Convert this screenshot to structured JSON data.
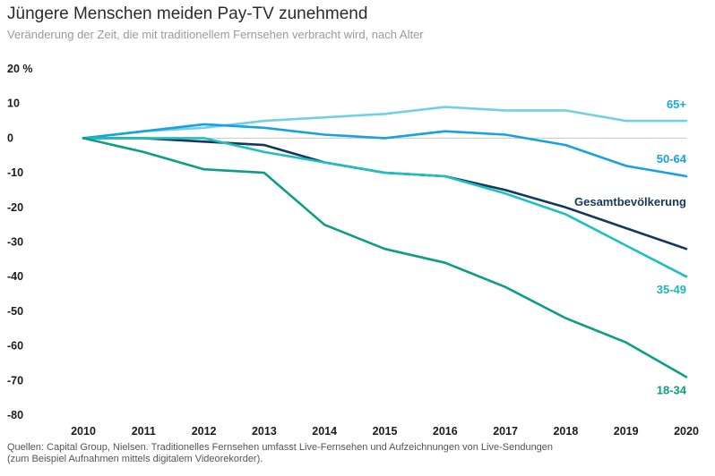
{
  "chart_data": {
    "type": "line",
    "title": "Jüngere Menschen meiden Pay-TV zunehmend",
    "subtitle": "Veränderung der Zeit, die mit traditionellem Fernsehen verbracht wird, nach Alter",
    "x": [
      2010,
      2011,
      2012,
      2013,
      2014,
      2015,
      2016,
      2017,
      2018,
      2019,
      2020
    ],
    "x_tick_labels": [
      "2010",
      "2011",
      "2012",
      "2013",
      "2014",
      "2015",
      "2016",
      "2017",
      "2018",
      "2019",
      "2020"
    ],
    "y_tick_labels": [
      "20 %",
      "10",
      "0",
      "-10",
      "-20",
      "-30",
      "-40",
      "-50",
      "-60",
      "-70",
      "-80"
    ],
    "ylim": [
      -80,
      20
    ],
    "y_ticks": [
      20,
      10,
      0,
      -10,
      -20,
      -30,
      -40,
      -50,
      -60,
      -70,
      -80
    ],
    "zero_line": true,
    "grid": false,
    "legend": "direct labels at line ends",
    "series": [
      {
        "name": "65+",
        "color": "#6fd0e6",
        "label_color": "#17a9e1",
        "values": [
          0,
          2,
          3,
          5,
          6,
          7,
          9,
          8,
          8,
          5,
          5
        ]
      },
      {
        "name": "50-64",
        "color": "#17a1e1",
        "label_color": "#17a1e1",
        "values": [
          0,
          2,
          4,
          3,
          1,
          0,
          2,
          1,
          -2,
          -8,
          -11
        ]
      },
      {
        "name": "Gesamtbevölkerung",
        "color": "#14375e",
        "label_color": "#14375e",
        "values": [
          0,
          0,
          -1,
          -2,
          -7,
          -10,
          -11,
          -15,
          -20,
          -26,
          -32
        ]
      },
      {
        "name": "35-49",
        "color": "#1cc0c0",
        "label_color": "#1cb8b8",
        "values": [
          0,
          0,
          0,
          -4,
          -7,
          -10,
          -11,
          -16,
          -22,
          -31,
          -40
        ]
      },
      {
        "name": "18-34",
        "color": "#0c9e84",
        "label_color": "#0c9e84",
        "values": [
          0,
          -4,
          -9,
          -10,
          -25,
          -32,
          -36,
          -43,
          -52,
          -59,
          -69
        ]
      }
    ]
  },
  "source": "Quellen: Capital Group, Nielsen. Traditionelles Fernsehen umfasst Live-Fernsehen und Aufzeichnungen von Live-Sendungen\n(zum Beispiel Aufnahmen mittels digitalem Videorekorder)."
}
